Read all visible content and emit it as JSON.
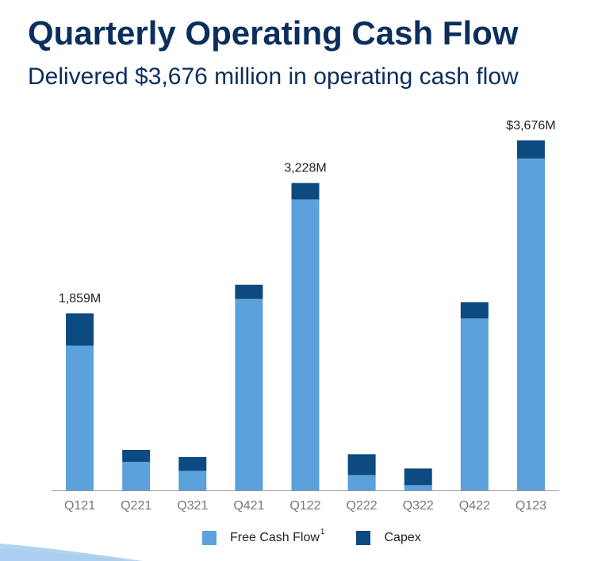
{
  "title": "Quarterly Operating Cash Flow",
  "subtitle": "Delivered $3,676 million in operating cash flow",
  "colors": {
    "fcf": "#5ba1db",
    "capex": "#0c4a80",
    "axis": "#999999",
    "title": "#0b2e5c"
  },
  "chart_data": {
    "type": "bar",
    "stacked": true,
    "title": "Quarterly Operating Cash Flow",
    "xlabel": "",
    "ylabel": "",
    "ylim": [
      0,
      4000
    ],
    "categories": [
      "Q121",
      "Q221",
      "Q321",
      "Q421",
      "Q122",
      "Q222",
      "Q322",
      "Q422",
      "Q123"
    ],
    "series": [
      {
        "name": "Free Cash Flow",
        "values": [
          1520,
          300,
          205,
          2010,
          3055,
          160,
          55,
          1805,
          3485
        ]
      },
      {
        "name": "Capex",
        "values": [
          339,
          125,
          145,
          150,
          173,
          220,
          175,
          170,
          191
        ]
      }
    ],
    "annotations": [
      {
        "category": "Q121",
        "text": "1,859M"
      },
      {
        "category": "Q122",
        "text": "3,228M"
      },
      {
        "category": "Q123",
        "text": "$3,676M"
      }
    ],
    "legend": {
      "position": "bottom",
      "labels": [
        "Free Cash Flow",
        "Capex"
      ],
      "footnote": "1"
    }
  }
}
